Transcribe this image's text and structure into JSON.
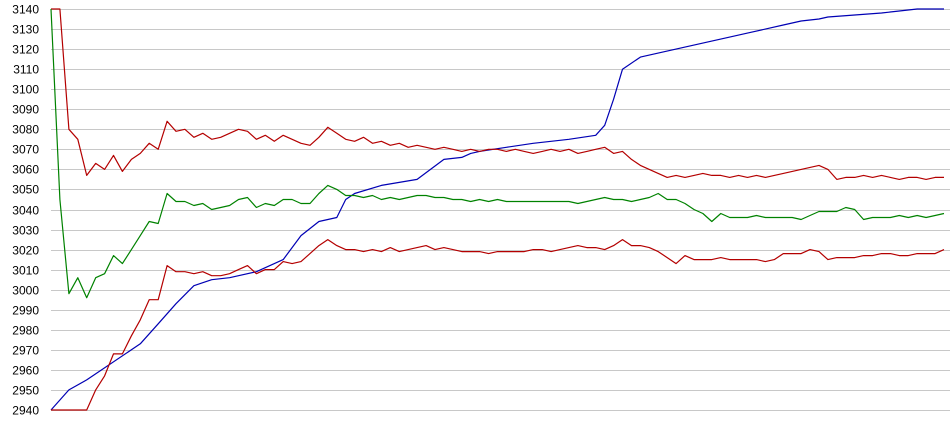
{
  "chart_data": {
    "type": "line",
    "title": "",
    "xlabel": "",
    "ylabel": "",
    "ylim": [
      2940,
      3140
    ],
    "y_ticks": [
      2940,
      2950,
      2960,
      2970,
      2980,
      2990,
      3000,
      3010,
      3020,
      3030,
      3040,
      3050,
      3060,
      3070,
      3080,
      3090,
      3100,
      3110,
      3120,
      3130,
      3140
    ],
    "y_tick_labels": [
      "2940",
      "2950",
      "2960",
      "2970",
      "2980",
      "2990",
      "3000",
      "3010",
      "3020",
      "3030",
      "3040",
      "3050",
      "3060",
      "3070",
      "3080",
      "3090",
      "3100",
      "3110",
      "3120",
      "3130",
      "3140"
    ],
    "grid": "horizontal",
    "legend": "none",
    "x_range": [
      0,
      100
    ],
    "series": [
      {
        "color": "#0000b4",
        "x": [
          0,
          2,
          4,
          10,
          12,
          14,
          16,
          18,
          20,
          23,
          26,
          28,
          30,
          32,
          33,
          34,
          37,
          41,
          44,
          46,
          47,
          48,
          51,
          54,
          56,
          58,
          61,
          62,
          63,
          64,
          66,
          68,
          71,
          74,
          76,
          78,
          82,
          84,
          86,
          87,
          90,
          93,
          95,
          97,
          100
        ],
        "y": [
          2940,
          2950,
          2955,
          2973,
          2983,
          2993,
          3002,
          3005,
          3006,
          3009,
          3015,
          3027,
          3034,
          3036,
          3045,
          3048,
          3052,
          3055,
          3065,
          3066,
          3068,
          3069,
          3071,
          3073,
          3074,
          3075,
          3077,
          3082,
          3095,
          3110,
          3116,
          3118,
          3121,
          3124,
          3126,
          3128,
          3132,
          3134,
          3135,
          3136,
          3137,
          3138,
          3139,
          3140,
          3140
        ]
      },
      {
        "color": "#b40000",
        "x": [
          0,
          1,
          2,
          3,
          4,
          5,
          6,
          7,
          8,
          9,
          10,
          11,
          12,
          13,
          14,
          15,
          16,
          17,
          18,
          19,
          20,
          21,
          22,
          23,
          24,
          25,
          26,
          27,
          28,
          29,
          30,
          31,
          32,
          33,
          34,
          35,
          36,
          37,
          38,
          39,
          40,
          41,
          42,
          43,
          44,
          45,
          46,
          47,
          48,
          49,
          50,
          51,
          52,
          53,
          54,
          55,
          56,
          57,
          58,
          59,
          60,
          61,
          62,
          63,
          64,
          65,
          66,
          67,
          68,
          69,
          70,
          71,
          72,
          73,
          74,
          75,
          76,
          77,
          78,
          79,
          80,
          81,
          82,
          83,
          84,
          85,
          86,
          87,
          88,
          89,
          90,
          91,
          92,
          93,
          94,
          95,
          96,
          97,
          98,
          99,
          100
        ],
        "y": [
          3140,
          3140,
          3080,
          3075,
          3057,
          3063,
          3060,
          3067,
          3059,
          3065,
          3068,
          3073,
          3070,
          3084,
          3079,
          3080,
          3076,
          3078,
          3075,
          3076,
          3078,
          3080,
          3079,
          3075,
          3077,
          3074,
          3077,
          3075,
          3073,
          3072,
          3076,
          3081,
          3078,
          3075,
          3074,
          3076,
          3073,
          3074,
          3072,
          3073,
          3071,
          3072,
          3071,
          3070,
          3071,
          3070,
          3069,
          3070,
          3069,
          3070,
          3070,
          3069,
          3070,
          3069,
          3068,
          3069,
          3070,
          3069,
          3070,
          3068,
          3069,
          3070,
          3071,
          3068,
          3069,
          3065,
          3062,
          3060,
          3058,
          3056,
          3057,
          3056,
          3057,
          3058,
          3057,
          3057,
          3056,
          3057,
          3056,
          3057,
          3056,
          3057,
          3058,
          3059,
          3060,
          3061,
          3062,
          3060,
          3055,
          3056,
          3056,
          3057,
          3056,
          3057,
          3056,
          3055,
          3056,
          3056,
          3055,
          3056,
          3056
        ]
      },
      {
        "color": "#b40000",
        "x": [
          0,
          1,
          2,
          3,
          4,
          5,
          6,
          7,
          8,
          9,
          10,
          11,
          12,
          13,
          14,
          15,
          16,
          17,
          18,
          19,
          20,
          21,
          22,
          23,
          24,
          25,
          26,
          27,
          28,
          29,
          30,
          31,
          32,
          33,
          34,
          35,
          36,
          37,
          38,
          39,
          40,
          41,
          42,
          43,
          44,
          45,
          46,
          47,
          48,
          49,
          50,
          51,
          52,
          53,
          54,
          55,
          56,
          57,
          58,
          59,
          60,
          61,
          62,
          63,
          64,
          65,
          66,
          67,
          68,
          69,
          70,
          71,
          72,
          73,
          74,
          75,
          76,
          77,
          78,
          79,
          80,
          81,
          82,
          83,
          84,
          85,
          86,
          87,
          88,
          89,
          90,
          91,
          92,
          93,
          94,
          95,
          96,
          97,
          98,
          99,
          100
        ],
        "y": [
          2940,
          2940,
          2940,
          2940,
          2940,
          2950,
          2957,
          2968,
          2968,
          2977,
          2985,
          2995,
          2995,
          3012,
          3009,
          3009,
          3008,
          3009,
          3007,
          3007,
          3008,
          3010,
          3012,
          3008,
          3010,
          3010,
          3014,
          3013,
          3014,
          3018,
          3022,
          3025,
          3022,
          3020,
          3020,
          3019,
          3020,
          3019,
          3021,
          3019,
          3020,
          3021,
          3022,
          3020,
          3021,
          3020,
          3019,
          3019,
          3019,
          3018,
          3019,
          3019,
          3019,
          3019,
          3020,
          3020,
          3019,
          3020,
          3021,
          3022,
          3021,
          3021,
          3020,
          3022,
          3025,
          3022,
          3022,
          3021,
          3019,
          3016,
          3013,
          3017,
          3015,
          3015,
          3015,
          3016,
          3015,
          3015,
          3015,
          3015,
          3014,
          3015,
          3018,
          3018,
          3018,
          3020,
          3019,
          3015,
          3016,
          3016,
          3016,
          3017,
          3017,
          3018,
          3018,
          3017,
          3017,
          3018,
          3018,
          3018,
          3020
        ]
      },
      {
        "color": "#008200",
        "x": [
          0,
          1,
          2,
          3,
          4,
          5,
          6,
          7,
          8,
          9,
          10,
          11,
          12,
          13,
          14,
          15,
          16,
          17,
          18,
          19,
          20,
          21,
          22,
          23,
          24,
          25,
          26,
          27,
          28,
          29,
          30,
          31,
          32,
          33,
          34,
          35,
          36,
          37,
          38,
          39,
          40,
          41,
          42,
          43,
          44,
          45,
          46,
          47,
          48,
          49,
          50,
          51,
          52,
          53,
          54,
          55,
          56,
          57,
          58,
          59,
          60,
          61,
          62,
          63,
          64,
          65,
          66,
          67,
          68,
          69,
          70,
          71,
          72,
          73,
          74,
          75,
          76,
          77,
          78,
          79,
          80,
          81,
          82,
          83,
          84,
          85,
          86,
          87,
          88,
          89,
          90,
          91,
          92,
          93,
          94,
          95,
          96,
          97,
          98,
          99,
          100
        ],
        "y": [
          3140,
          3045,
          2998,
          3006,
          2996,
          3006,
          3008,
          3017,
          3013,
          3020,
          3027,
          3034,
          3033,
          3048,
          3044,
          3044,
          3042,
          3043,
          3040,
          3041,
          3042,
          3045,
          3046,
          3041,
          3043,
          3042,
          3045,
          3045,
          3043,
          3043,
          3048,
          3052,
          3050,
          3047,
          3047,
          3046,
          3047,
          3045,
          3046,
          3045,
          3046,
          3047,
          3047,
          3046,
          3046,
          3045,
          3045,
          3044,
          3045,
          3044,
          3045,
          3044,
          3044,
          3044,
          3044,
          3044,
          3044,
          3044,
          3044,
          3043,
          3044,
          3045,
          3046,
          3045,
          3045,
          3044,
          3045,
          3046,
          3048,
          3045,
          3045,
          3043,
          3040,
          3038,
          3034,
          3038,
          3036,
          3036,
          3036,
          3037,
          3036,
          3036,
          3036,
          3036,
          3035,
          3037,
          3039,
          3039,
          3039,
          3041,
          3040,
          3035,
          3036,
          3036,
          3036,
          3037,
          3036,
          3037,
          3036,
          3037,
          3038
        ]
      }
    ]
  }
}
